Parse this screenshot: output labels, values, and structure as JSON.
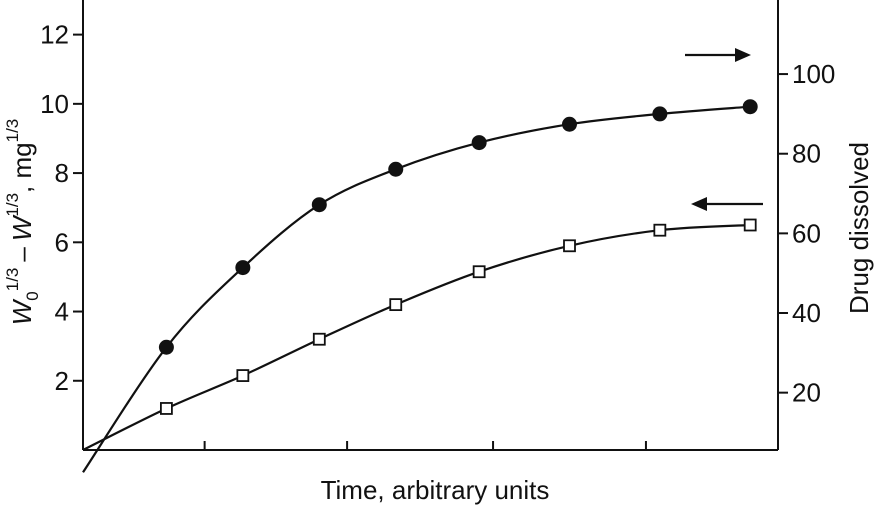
{
  "chart_data": {
    "type": "line",
    "xlabel": "Time, arbitrary units",
    "ylabel_left": {
      "w0": "W",
      "w0_sub": "0",
      "w0_exp": "1/3",
      "minus": "–",
      "w": "W",
      "w_exp": "1/3",
      "unit": ", mg",
      "unit_exp": "1/3"
    },
    "ylabel_right": "Drug dissolved",
    "xlim": [
      0,
      10
    ],
    "ylim_left": [
      0,
      13
    ],
    "ylim_right": [
      5.6,
      118.6
    ],
    "y_ticks_left": [
      2,
      4,
      6,
      8,
      10,
      12
    ],
    "y_tick_labels_left": [
      "2",
      "4",
      "6",
      "8",
      "10",
      "12"
    ],
    "y_ticks_right": [
      20,
      40,
      60,
      80,
      100
    ],
    "y_tick_labels_right": [
      "20",
      "40",
      "60",
      "80",
      "100"
    ],
    "x_ticks": [
      1.75,
      3.8,
      5.9,
      8.1
    ],
    "series": [
      {
        "name": "Drug dissolved",
        "axis": "right",
        "marker": "filled-circle",
        "arrow": "right",
        "x": [
          0,
          1.2,
          2.3,
          3.4,
          4.5,
          5.7,
          7.0,
          8.3,
          9.6
        ],
        "y": [
          0,
          31.4,
          51.4,
          67.2,
          76.1,
          82.8,
          87.4,
          90.0,
          91.8
        ]
      },
      {
        "name": "W0^(1/3) - W^(1/3)",
        "axis": "left",
        "marker": "open-square",
        "arrow": "left",
        "x": [
          0,
          1.2,
          2.3,
          3.4,
          4.5,
          5.7,
          7.0,
          8.3,
          9.6
        ],
        "y": [
          0,
          1.2,
          2.15,
          3.2,
          4.2,
          5.15,
          5.9,
          6.35,
          6.5
        ]
      }
    ]
  }
}
